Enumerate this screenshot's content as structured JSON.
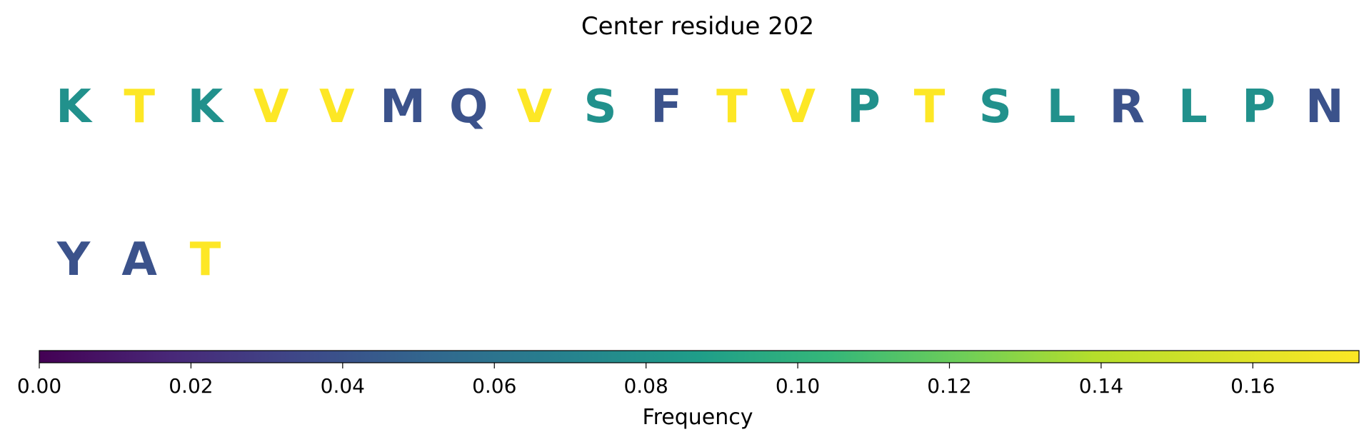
{
  "chart_data": {
    "type": "other",
    "title": "Center residue 202",
    "residues": [
      {
        "letter": "K",
        "color": "#21918c",
        "value": 0.087
      },
      {
        "letter": "T",
        "color": "#fde725",
        "value": 0.174
      },
      {
        "letter": "K",
        "color": "#21918c",
        "value": 0.087
      },
      {
        "letter": "V",
        "color": "#fde725",
        "value": 0.174
      },
      {
        "letter": "V",
        "color": "#fde725",
        "value": 0.174
      },
      {
        "letter": "M",
        "color": "#3b528b",
        "value": 0.043
      },
      {
        "letter": "Q",
        "color": "#3b528b",
        "value": 0.043
      },
      {
        "letter": "V",
        "color": "#fde725",
        "value": 0.174
      },
      {
        "letter": "S",
        "color": "#21918c",
        "value": 0.087
      },
      {
        "letter": "F",
        "color": "#3b528b",
        "value": 0.043
      },
      {
        "letter": "T",
        "color": "#fde725",
        "value": 0.174
      },
      {
        "letter": "V",
        "color": "#fde725",
        "value": 0.174
      },
      {
        "letter": "P",
        "color": "#21918c",
        "value": 0.087
      },
      {
        "letter": "T",
        "color": "#fde725",
        "value": 0.174
      },
      {
        "letter": "S",
        "color": "#21918c",
        "value": 0.087
      },
      {
        "letter": "L",
        "color": "#21918c",
        "value": 0.087
      },
      {
        "letter": "R",
        "color": "#3b528b",
        "value": 0.043
      },
      {
        "letter": "L",
        "color": "#21918c",
        "value": 0.087
      },
      {
        "letter": "P",
        "color": "#21918c",
        "value": 0.087
      },
      {
        "letter": "N",
        "color": "#3b528b",
        "value": 0.043
      },
      {
        "letter": "Y",
        "color": "#3b528b",
        "value": 0.043
      },
      {
        "letter": "A",
        "color": "#3b528b",
        "value": 0.043
      },
      {
        "letter": "T",
        "color": "#fde725",
        "value": 0.174
      }
    ],
    "colorbar": {
      "label": "Frequency",
      "colormap": "viridis",
      "range": [
        0,
        0.174
      ],
      "ticks": [
        0.0,
        0.02,
        0.04,
        0.06,
        0.08,
        0.1,
        0.12,
        0.14,
        0.16
      ],
      "tick_labels": [
        "0.00",
        "0.02",
        "0.04",
        "0.06",
        "0.08",
        "0.10",
        "0.12",
        "0.14",
        "0.16"
      ],
      "orientation": "horizontal",
      "placement": "bottom"
    }
  }
}
